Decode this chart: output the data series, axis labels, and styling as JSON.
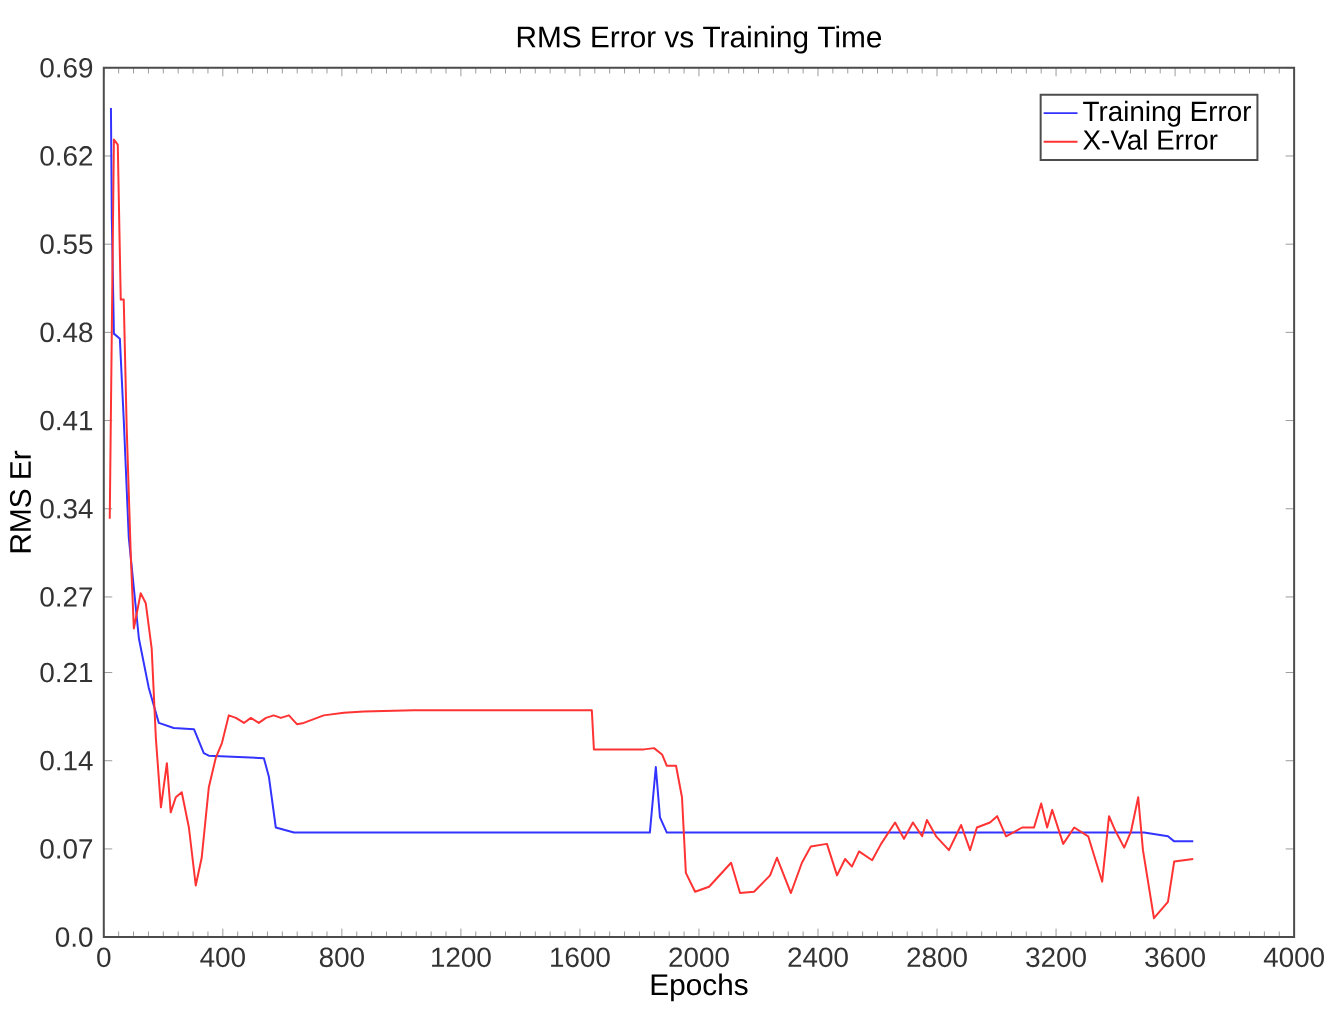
{
  "chart_data": {
    "type": "line",
    "title": "RMS Error vs Training Time",
    "xlabel": "Epochs",
    "ylabel": "RMS Er",
    "xlim": [
      0,
      4000
    ],
    "xticks": [
      0,
      400,
      800,
      1200,
      1600,
      2000,
      2400,
      2800,
      3200,
      3600,
      4000
    ],
    "ylim": [
      0,
      0.69
    ],
    "yticks": [
      {
        "value": 0,
        "label": "0.0"
      },
      0.07,
      0.14,
      0.21,
      0.27,
      0.34,
      0.41,
      0.48,
      0.55,
      0.62,
      0.69
    ],
    "grid": false,
    "legend": "top right",
    "line_style": "solid",
    "series": [
      {
        "name": "Training Error",
        "color": "#3333ff",
        "x": [
          24,
          27,
          34,
          54,
          67,
          84,
          101,
          118,
          151,
          185,
          235,
          303,
          336,
          353,
          538,
          555,
          578,
          639,
          1835,
          1855,
          1869,
          1892,
          3496,
          3576,
          3597,
          3661
        ],
        "values": [
          0.658,
          0.57,
          0.479,
          0.475,
          0.411,
          0.317,
          0.277,
          0.237,
          0.198,
          0.17,
          0.166,
          0.165,
          0.146,
          0.144,
          0.142,
          0.127,
          0.087,
          0.083,
          0.083,
          0.135,
          0.095,
          0.083,
          0.083,
          0.08,
          0.076,
          0.076
        ]
      },
      {
        "name": "X-Val Error",
        "color": "#ff3333",
        "x": [
          20,
          34,
          47,
          57,
          67,
          77,
          91,
          101,
          124,
          141,
          161,
          175,
          192,
          212,
          225,
          242,
          262,
          286,
          309,
          329,
          353,
          376,
          397,
          420,
          444,
          471,
          494,
          521,
          545,
          571,
          595,
          622,
          649,
          672,
          739,
          807,
          874,
          1042,
          1640,
          1647,
          1815,
          1849,
          1876,
          1892,
          1923,
          1943,
          1956,
          1987,
          2034,
          2108,
          2138,
          2185,
          2239,
          2262,
          2309,
          2346,
          2376,
          2430,
          2464,
          2491,
          2514,
          2538,
          2582,
          2612,
          2659,
          2689,
          2719,
          2750,
          2766,
          2797,
          2840,
          2881,
          2911,
          2934,
          2978,
          3002,
          3032,
          3086,
          3126,
          3150,
          3170,
          3187,
          3224,
          3261,
          3308,
          3355,
          3378,
          3398,
          3429,
          3452,
          3476,
          3492,
          3529,
          3576,
          3597,
          3661
        ],
        "values": [
          0.332,
          0.633,
          0.629,
          0.506,
          0.506,
          0.404,
          0.301,
          0.245,
          0.273,
          0.265,
          0.229,
          0.158,
          0.103,
          0.138,
          0.099,
          0.111,
          0.115,
          0.087,
          0.041,
          0.063,
          0.119,
          0.142,
          0.154,
          0.176,
          0.174,
          0.17,
          0.174,
          0.17,
          0.174,
          0.176,
          0.174,
          0.176,
          0.169,
          0.17,
          0.176,
          0.178,
          0.179,
          0.18,
          0.18,
          0.149,
          0.149,
          0.15,
          0.145,
          0.136,
          0.136,
          0.111,
          0.051,
          0.036,
          0.04,
          0.059,
          0.035,
          0.036,
          0.049,
          0.063,
          0.035,
          0.059,
          0.072,
          0.074,
          0.049,
          0.062,
          0.056,
          0.068,
          0.061,
          0.074,
          0.091,
          0.078,
          0.091,
          0.08,
          0.093,
          0.08,
          0.069,
          0.089,
          0.069,
          0.087,
          0.091,
          0.096,
          0.08,
          0.087,
          0.087,
          0.106,
          0.087,
          0.101,
          0.074,
          0.087,
          0.08,
          0.044,
          0.096,
          0.085,
          0.071,
          0.084,
          0.111,
          0.069,
          0.015,
          0.028,
          0.06,
          0.062
        ]
      }
    ]
  }
}
